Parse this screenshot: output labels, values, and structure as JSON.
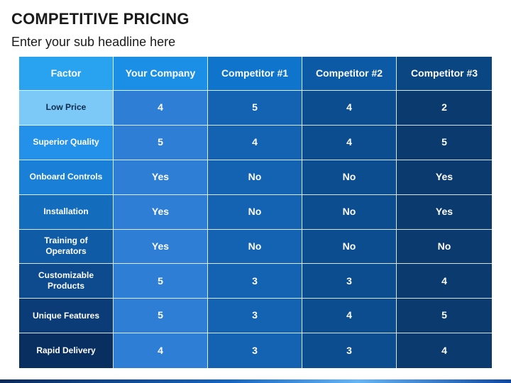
{
  "slide": {
    "title": "COMPETITIVE PRICING",
    "subtitle": "Enter your sub headline here"
  },
  "table": {
    "headers": [
      "Factor",
      "Your Company",
      "Competitor #1",
      "Competitor #2",
      "Competitor #3"
    ],
    "rows": [
      {
        "factor": "Low Price",
        "values": [
          "4",
          "5",
          "4",
          "2"
        ]
      },
      {
        "factor": "Superior Quality",
        "values": [
          "5",
          "4",
          "4",
          "5"
        ]
      },
      {
        "factor": "Onboard Controls",
        "values": [
          "Yes",
          "No",
          "No",
          "Yes"
        ]
      },
      {
        "factor": "Installation",
        "values": [
          "Yes",
          "No",
          "No",
          "Yes"
        ]
      },
      {
        "factor": "Training of Operators",
        "values": [
          "Yes",
          "No",
          "No",
          "No"
        ]
      },
      {
        "factor": "Customizable Products",
        "values": [
          "5",
          "3",
          "3",
          "4"
        ]
      },
      {
        "factor": "Unique Features",
        "values": [
          "5",
          "3",
          "4",
          "5"
        ]
      },
      {
        "factor": "Rapid Delivery",
        "values": [
          "4",
          "3",
          "3",
          "4"
        ]
      }
    ]
  },
  "colors": {
    "header_gradient": [
      "#29a3f0",
      "#1b8fe6",
      "#0f74cc",
      "#0c5aa6",
      "#0a4682"
    ],
    "column_body": [
      "#2e7ed6",
      "#1463b3",
      "#0c4d8f",
      "#0a3a6e"
    ],
    "factor_column": [
      "#7cc9f7",
      "#2391ea",
      "#1a7fd6",
      "#146cbd",
      "#105ba6",
      "#0d4a8e",
      "#0b3c77",
      "#092f60"
    ]
  }
}
